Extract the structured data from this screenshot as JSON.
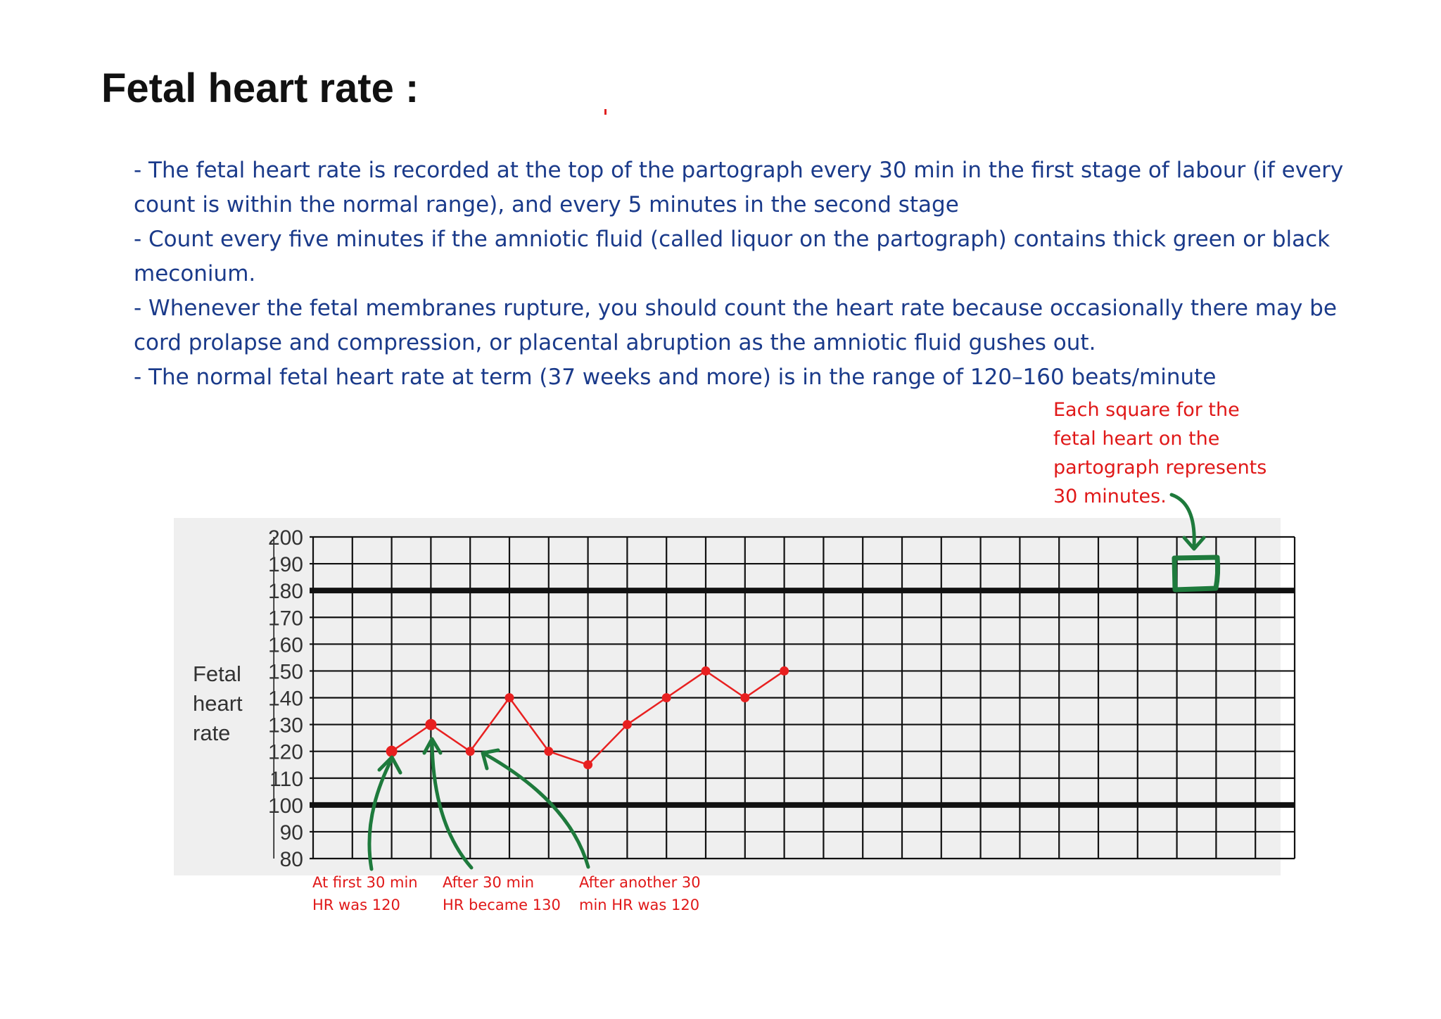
{
  "title": "Fetal heart rate :",
  "bullets": [
    "- The fetal heart rate is recorded at the top of the partograph every 30 min in the first stage of labour (if every count is within the normal range), and every 5 minutes in the second stage",
    "- Count every five minutes if the amniotic fluid (called liquor on the partograph) contains thick green or black meconium.",
    "- Whenever the fetal membranes rupture, you should count the heart rate because occasionally there may be cord prolapse and compression, or placental abruption as the amniotic fluid gushes out.",
    "- The normal fetal heart rate at term (37 weeks and more) is in the range of 120–160 beats/minute"
  ],
  "note": [
    "Each square for the",
    "fetal heart on the",
    "partograph represents",
    "30 minutes."
  ],
  "captions": [
    {
      "line1": "At first 30 min",
      "line2": "HR was 120"
    },
    {
      "line1": "After 30 min",
      "line2": "HR became 130"
    },
    {
      "line1": "After another 30",
      "line2": "min HR was 120"
    }
  ],
  "colors": {
    "text_blue": "#1a3a8a",
    "annotation_red": "#e01818",
    "series_red": "#e82020",
    "arrow_green": "#1e7a3c",
    "grid": "#111111"
  },
  "chart_data": {
    "type": "line",
    "ylabel": "Fetal heart rate",
    "ylim": [
      80,
      200
    ],
    "yticks": [
      200,
      190,
      180,
      170,
      160,
      150,
      140,
      130,
      120,
      110,
      100,
      90,
      80
    ],
    "reference_lines": [
      180,
      100
    ],
    "x_interval_minutes": 30,
    "columns": 25,
    "series": [
      {
        "x": [
          2,
          3,
          4,
          5,
          6,
          7,
          8,
          9,
          10,
          11,
          12
        ],
        "values": [
          120,
          130,
          120,
          140,
          120,
          115,
          130,
          140,
          150,
          140,
          150
        ]
      }
    ]
  }
}
